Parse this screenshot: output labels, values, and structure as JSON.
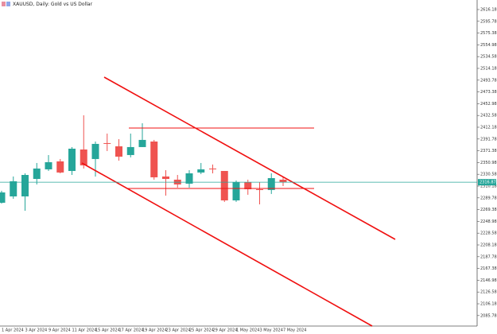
{
  "chart_data": {
    "type": "candlestick",
    "title": "XAUUSD, Daily: Gold vs US Dollar",
    "categories": [
      "1 Apr 2024",
      null,
      "3 Apr 2024",
      null,
      "9 Apr 2024",
      null,
      "11 Apr 2024",
      null,
      "15 Apr 2024",
      null,
      "17 Apr 2024",
      null,
      "19 Apr 2024",
      null,
      "23 Apr 2024",
      null,
      "25 Apr 2024",
      null,
      "29 Apr 2024",
      null,
      "1 May 2024",
      null,
      "3 May 2024",
      null,
      "7 May 2024"
    ],
    "open": [
      2281.3,
      2292.3,
      2292.3,
      2322.6,
      2339.2,
      2353.0,
      2336.4,
      2373.6,
      2357.1,
      2384.7,
      2379.1,
      2364.0,
      2377.8,
      2387.4,
      2326.8,
      2321.3,
      2314.4,
      2333.7,
      2340.6,
      2336.4,
      2285.4,
      2317.1,
      2304.7,
      2303.4,
      2321.3
    ],
    "high": [
      2302.0,
      2326.8,
      2332.3,
      2350.2,
      2364.0,
      2357.1,
      2377.8,
      2432.9,
      2387.4,
      2401.2,
      2391.5,
      2401.2,
      2419.1,
      2390.2,
      2337.8,
      2329.5,
      2337.8,
      2350.2,
      2347.5,
      2336.4,
      2319.9,
      2321.3,
      2317.1,
      2332.3,
      2325.4
    ],
    "low": [
      2279.9,
      2288.2,
      2267.5,
      2313.0,
      2336.4,
      2332.3,
      2329.5,
      2340.6,
      2326.8,
      2370.9,
      2354.3,
      2359.9,
      2377.8,
      2321.3,
      2293.7,
      2307.5,
      2307.5,
      2330.9,
      2332.3,
      2282.7,
      2282.7,
      2295.1,
      2278.5,
      2296.5,
      2310.2
    ],
    "close": [
      2299.2,
      2318.5,
      2329.5,
      2340.6,
      2351.6,
      2333.7,
      2375.0,
      2346.1,
      2383.3,
      2383.3,
      2361.2,
      2377.8,
      2390.2,
      2325.4,
      2322.6,
      2313.0,
      2332.3,
      2339.2,
      2339.2,
      2285.4,
      2317.1,
      2304.7,
      2303.4,
      2324.0,
      2316.87
    ],
    "up_color": "#26a69a",
    "down_color": "#ef5350",
    "last_price": 2316.87,
    "last_price_color": "#26a69a",
    "ylim": [
      2067.6,
      2632.7
    ],
    "yticks": [
      2616.18,
      2595.78,
      2575.38,
      2554.98,
      2534.58,
      2514.18,
      2493.78,
      2473.38,
      2452.98,
      2432.58,
      2412.18,
      2391.78,
      2371.38,
      2350.98,
      2330.58,
      2310.18,
      2289.78,
      2269.38,
      2248.98,
      2228.58,
      2208.18,
      2187.78,
      2167.38,
      2146.98,
      2126.58,
      2106.18,
      2085.78
    ]
  }
}
